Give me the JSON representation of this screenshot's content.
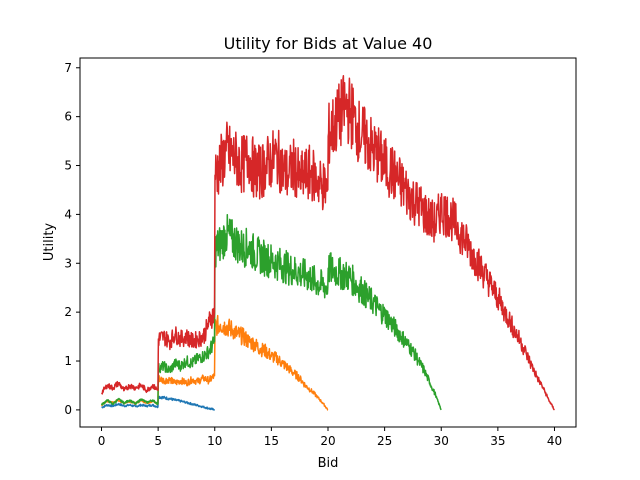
{
  "chart_data": {
    "type": "line",
    "title": "Utility for Bids at Value 40",
    "xlabel": "Bid",
    "ylabel": "Utility",
    "xlim": [
      -1.9,
      41.9
    ],
    "ylim": [
      -0.35,
      7.2
    ],
    "x_ticks": [
      0,
      5,
      10,
      15,
      20,
      25,
      30,
      35,
      40
    ],
    "y_ticks": [
      0,
      1,
      2,
      3,
      4,
      5,
      6,
      7
    ],
    "grid": false,
    "legend": "none",
    "series": [
      {
        "color": "#1f77b4",
        "points": [
          [
            0,
            0.05
          ],
          [
            0.5,
            0.1
          ],
          [
            1,
            0.08
          ],
          [
            1.5,
            0.12
          ],
          [
            2,
            0.08
          ],
          [
            2.5,
            0.1
          ],
          [
            3,
            0.07
          ],
          [
            3.5,
            0.1
          ],
          [
            4,
            0.08
          ],
          [
            4.5,
            0.1
          ],
          [
            4.98,
            0.06
          ],
          [
            5.02,
            0.27
          ],
          [
            5.5,
            0.25
          ],
          [
            6,
            0.23
          ],
          [
            6.5,
            0.2
          ],
          [
            7,
            0.18
          ],
          [
            7.5,
            0.15
          ],
          [
            8,
            0.12
          ],
          [
            8.5,
            0.09
          ],
          [
            9,
            0.06
          ],
          [
            9.5,
            0.03
          ],
          [
            10,
            0.0
          ]
        ]
      },
      {
        "color": "#ff7f0e",
        "points": [
          [
            0,
            0.1
          ],
          [
            0.5,
            0.18
          ],
          [
            1,
            0.15
          ],
          [
            1.5,
            0.2
          ],
          [
            2,
            0.14
          ],
          [
            2.5,
            0.18
          ],
          [
            3,
            0.13
          ],
          [
            3.5,
            0.2
          ],
          [
            4,
            0.14
          ],
          [
            4.5,
            0.18
          ],
          [
            4.98,
            0.12
          ],
          [
            5.02,
            0.65
          ],
          [
            5.5,
            0.6
          ],
          [
            6,
            0.62
          ],
          [
            6.5,
            0.55
          ],
          [
            7,
            0.6
          ],
          [
            7.5,
            0.55
          ],
          [
            8,
            0.62
          ],
          [
            8.5,
            0.58
          ],
          [
            9,
            0.65
          ],
          [
            9.5,
            0.6
          ],
          [
            9.98,
            0.7
          ],
          [
            10.02,
            1.7
          ],
          [
            10.5,
            1.75
          ],
          [
            11,
            1.7
          ],
          [
            11.5,
            1.65
          ],
          [
            12,
            1.55
          ],
          [
            12.5,
            1.5
          ],
          [
            13,
            1.4
          ],
          [
            13.5,
            1.35
          ],
          [
            14,
            1.25
          ],
          [
            14.5,
            1.2
          ],
          [
            15,
            1.1
          ],
          [
            15.5,
            1.05
          ],
          [
            16,
            0.95
          ],
          [
            16.5,
            0.85
          ],
          [
            17,
            0.75
          ],
          [
            17.5,
            0.65
          ],
          [
            18,
            0.5
          ],
          [
            18.5,
            0.4
          ],
          [
            19,
            0.28
          ],
          [
            19.5,
            0.15
          ],
          [
            20,
            0.0
          ]
        ]
      },
      {
        "color": "#2ca02c",
        "points": [
          [
            0,
            0.1
          ],
          [
            0.5,
            0.2
          ],
          [
            1,
            0.12
          ],
          [
            1.5,
            0.22
          ],
          [
            2,
            0.14
          ],
          [
            2.5,
            0.2
          ],
          [
            3,
            0.12
          ],
          [
            3.5,
            0.22
          ],
          [
            4,
            0.15
          ],
          [
            4.5,
            0.2
          ],
          [
            4.98,
            0.12
          ],
          [
            5.02,
            0.85
          ],
          [
            5.5,
            0.9
          ],
          [
            6,
            0.8
          ],
          [
            6.5,
            0.95
          ],
          [
            7,
            0.9
          ],
          [
            7.5,
            1.0
          ],
          [
            8,
            0.95
          ],
          [
            8.5,
            1.05
          ],
          [
            9,
            1.1
          ],
          [
            9.5,
            1.2
          ],
          [
            9.98,
            1.4
          ],
          [
            10.02,
            3.3
          ],
          [
            10.5,
            3.4
          ],
          [
            11,
            3.6
          ],
          [
            11.5,
            3.5
          ],
          [
            12,
            3.4
          ],
          [
            12.5,
            3.3
          ],
          [
            13,
            3.35
          ],
          [
            13.5,
            3.2
          ],
          [
            14,
            3.15
          ],
          [
            14.5,
            3.1
          ],
          [
            15,
            3.05
          ],
          [
            15.5,
            3.0
          ],
          [
            16,
            2.95
          ],
          [
            16.5,
            2.9
          ],
          [
            17,
            2.85
          ],
          [
            17.5,
            2.8
          ],
          [
            18,
            2.75
          ],
          [
            18.5,
            2.7
          ],
          [
            19,
            2.6
          ],
          [
            19.5,
            2.55
          ],
          [
            19.98,
            2.5
          ],
          [
            20.02,
            2.9
          ],
          [
            20.5,
            2.85
          ],
          [
            21,
            2.8
          ],
          [
            21.5,
            2.75
          ],
          [
            22,
            2.7
          ],
          [
            22.5,
            2.55
          ],
          [
            23,
            2.45
          ],
          [
            23.5,
            2.3
          ],
          [
            24,
            2.2
          ],
          [
            24.5,
            2.05
          ],
          [
            25,
            1.95
          ],
          [
            25.5,
            1.8
          ],
          [
            26,
            1.65
          ],
          [
            26.5,
            1.5
          ],
          [
            27,
            1.35
          ],
          [
            27.5,
            1.2
          ],
          [
            28,
            1.0
          ],
          [
            28.5,
            0.8
          ],
          [
            29,
            0.55
          ],
          [
            29.5,
            0.3
          ],
          [
            30,
            0.0
          ]
        ]
      },
      {
        "color": "#d62728",
        "points": [
          [
            0,
            0.35
          ],
          [
            0.5,
            0.5
          ],
          [
            1,
            0.45
          ],
          [
            1.5,
            0.55
          ],
          [
            2,
            0.4
          ],
          [
            2.5,
            0.5
          ],
          [
            3,
            0.45
          ],
          [
            3.5,
            0.5
          ],
          [
            4,
            0.4
          ],
          [
            4.5,
            0.5
          ],
          [
            4.98,
            0.4
          ],
          [
            5.02,
            1.45
          ],
          [
            5.5,
            1.5
          ],
          [
            6,
            1.4
          ],
          [
            6.5,
            1.55
          ],
          [
            7,
            1.45
          ],
          [
            7.5,
            1.5
          ],
          [
            8,
            1.4
          ],
          [
            8.5,
            1.45
          ],
          [
            9,
            1.5
          ],
          [
            9.5,
            1.8
          ],
          [
            9.98,
            2.0
          ],
          [
            10.02,
            4.8
          ],
          [
            10.5,
            5.0
          ],
          [
            11,
            5.3
          ],
          [
            11.5,
            5.2
          ],
          [
            12,
            5.1
          ],
          [
            12.5,
            5.0
          ],
          [
            13,
            5.2
          ],
          [
            13.5,
            4.9
          ],
          [
            14,
            4.85
          ],
          [
            14.5,
            5.0
          ],
          [
            15,
            5.1
          ],
          [
            15.5,
            5.2
          ],
          [
            16,
            4.9
          ],
          [
            16.5,
            4.8
          ],
          [
            17,
            5.0
          ],
          [
            17.5,
            4.7
          ],
          [
            18,
            4.8
          ],
          [
            18.5,
            4.85
          ],
          [
            19,
            4.7
          ],
          [
            19.5,
            4.6
          ],
          [
            19.98,
            4.5
          ],
          [
            20.02,
            5.6
          ],
          [
            20.5,
            5.8
          ],
          [
            21,
            6.0
          ],
          [
            21.5,
            6.2
          ],
          [
            22,
            6.1
          ],
          [
            22.5,
            5.8
          ],
          [
            23,
            5.6
          ],
          [
            23.5,
            5.5
          ],
          [
            24,
            5.3
          ],
          [
            24.5,
            5.2
          ],
          [
            25,
            5.0
          ],
          [
            25.5,
            4.9
          ],
          [
            26,
            4.75
          ],
          [
            26.5,
            4.6
          ],
          [
            27,
            4.45
          ],
          [
            27.5,
            4.3
          ],
          [
            28,
            4.2
          ],
          [
            28.5,
            4.05
          ],
          [
            29,
            3.9
          ],
          [
            29.5,
            3.8
          ],
          [
            30,
            4.1
          ],
          [
            30.5,
            4.0
          ],
          [
            31,
            3.9
          ],
          [
            31.5,
            3.7
          ],
          [
            32,
            3.5
          ],
          [
            32.5,
            3.3
          ],
          [
            33,
            3.1
          ],
          [
            33.5,
            2.9
          ],
          [
            34,
            2.7
          ],
          [
            34.5,
            2.5
          ],
          [
            35,
            2.3
          ],
          [
            35.5,
            2.05
          ],
          [
            36,
            1.85
          ],
          [
            36.5,
            1.6
          ],
          [
            37,
            1.4
          ],
          [
            37.5,
            1.15
          ],
          [
            38,
            0.9
          ],
          [
            38.5,
            0.65
          ],
          [
            39,
            0.45
          ],
          [
            39.5,
            0.2
          ],
          [
            40,
            0.0
          ]
        ]
      }
    ]
  }
}
